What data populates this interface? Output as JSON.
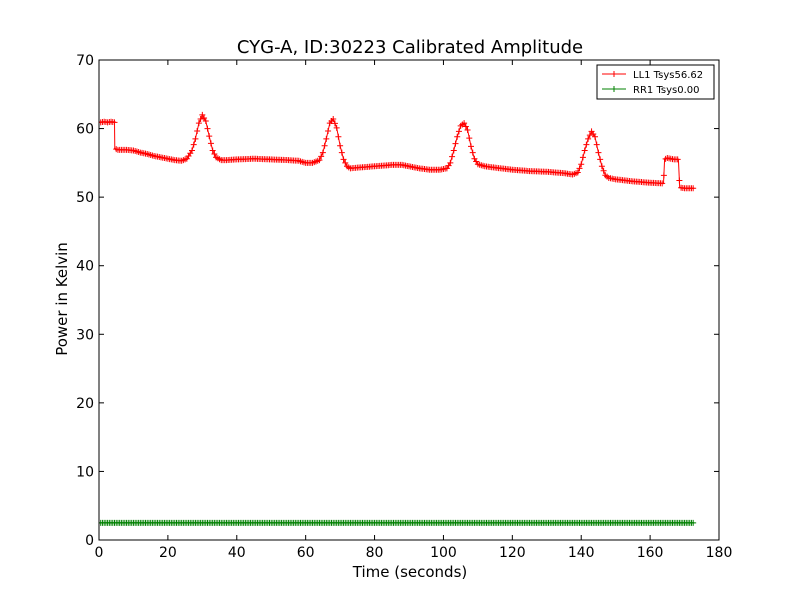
{
  "chart_data": {
    "type": "line",
    "title": "CYG-A, ID:30223 Calibrated Amplitude",
    "xlabel": "Time (seconds)",
    "ylabel": "Power in Kelvin",
    "xlim": [
      0,
      180
    ],
    "ylim": [
      0,
      70
    ],
    "xticks": [
      0,
      20,
      40,
      60,
      80,
      100,
      120,
      140,
      160,
      180
    ],
    "yticks": [
      0,
      10,
      20,
      30,
      40,
      50,
      60,
      70
    ],
    "grid": false,
    "legend_position": "top-right",
    "colors": {
      "LL1": "#ff0000",
      "RR1": "#008000"
    },
    "series": [
      {
        "name": "LL1 Tsys56.62",
        "color": "#ff0000",
        "marker": "+",
        "x": [
          0.5,
          1.5,
          2.5,
          3.5,
          4.5,
          4.6,
          5.5,
          6.5,
          8,
          10,
          12,
          14,
          16,
          18,
          20,
          22,
          24,
          25.5,
          27,
          28,
          29,
          30,
          31,
          32,
          33,
          34,
          35.5,
          37,
          40,
          45,
          50,
          55,
          58,
          60,
          62,
          64,
          65,
          66,
          67,
          68,
          69,
          70,
          71,
          72,
          73,
          75,
          80,
          85,
          88,
          90,
          93,
          96,
          99,
          101,
          102,
          103,
          104,
          105,
          106,
          107,
          108,
          109,
          110,
          112,
          115,
          120,
          125,
          130,
          135,
          137.5,
          139,
          140,
          141,
          142,
          143,
          144,
          145,
          146,
          147,
          148,
          150,
          155,
          160,
          163.9,
          164.2,
          165,
          166,
          167,
          168.2,
          168.6,
          170,
          171.5,
          172.5
        ],
        "y": [
          60.9,
          61.0,
          60.9,
          61.0,
          60.9,
          57.1,
          56.9,
          56.9,
          56.9,
          56.8,
          56.5,
          56.3,
          56.0,
          55.8,
          55.6,
          55.4,
          55.3,
          55.6,
          56.8,
          58.5,
          60.8,
          62.0,
          61.1,
          58.9,
          56.8,
          55.8,
          55.4,
          55.4,
          55.5,
          55.6,
          55.5,
          55.4,
          55.3,
          55.0,
          55.0,
          55.4,
          56.5,
          58.5,
          60.8,
          61.4,
          60.1,
          57.5,
          55.5,
          54.5,
          54.2,
          54.3,
          54.5,
          54.7,
          54.7,
          54.5,
          54.2,
          54.0,
          54.0,
          54.2,
          55.0,
          56.8,
          58.8,
          60.4,
          60.8,
          59.8,
          57.4,
          55.6,
          54.8,
          54.5,
          54.3,
          54.0,
          53.8,
          53.7,
          53.5,
          53.3,
          53.6,
          54.8,
          56.8,
          58.5,
          59.6,
          58.8,
          56.5,
          54.5,
          53.2,
          52.8,
          52.6,
          52.3,
          52.1,
          52.0,
          55.5,
          55.7,
          55.6,
          55.5,
          55.5,
          51.4,
          51.3,
          51.3,
          51.3
        ]
      },
      {
        "name": "RR1 Tsys0.00",
        "color": "#008000",
        "marker": "+",
        "x": [
          0.5,
          10,
          20,
          40,
          60,
          80,
          100,
          120,
          140,
          160,
          164,
          168,
          172.5
        ],
        "y": [
          2.5,
          2.5,
          2.5,
          2.5,
          2.5,
          2.5,
          2.5,
          2.5,
          2.5,
          2.5,
          2.5,
          2.5,
          2.5
        ]
      }
    ]
  }
}
